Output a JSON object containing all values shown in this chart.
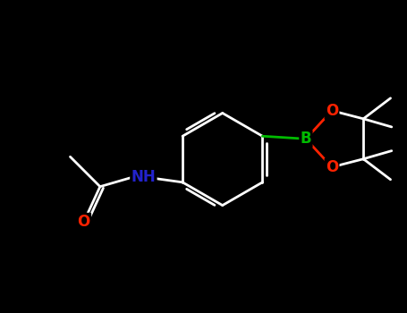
{
  "background_color": "#000000",
  "bond_color": "#ffffff",
  "bond_width": 2.0,
  "B_color": "#00bb00",
  "O_color": "#ff2200",
  "N_color": "#2222cc",
  "figsize": [
    4.55,
    3.5
  ],
  "dpi": 100,
  "xlim": [
    -3.5,
    4.0
  ],
  "ylim": [
    -3.2,
    2.5
  ]
}
